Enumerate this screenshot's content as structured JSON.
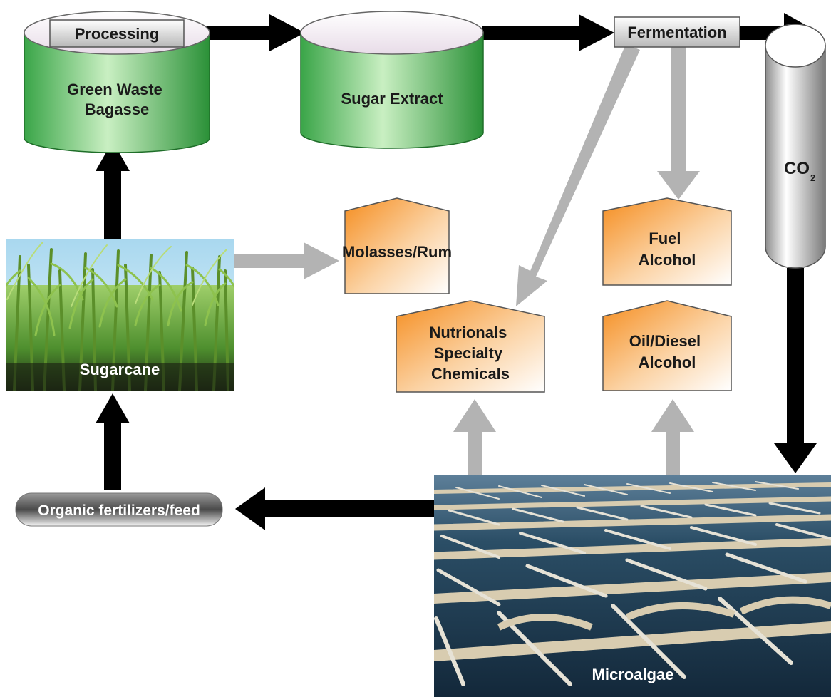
{
  "nodes": {
    "processing": "Processing",
    "green_waste": [
      "Green Waste",
      "Bagasse"
    ],
    "sugar_extract": "Sugar Extract",
    "fermentation": "Fermentation",
    "co2": {
      "main": "CO",
      "sub": "2"
    },
    "sugarcane": "Sugarcane",
    "molasses": "Molasses/Rum",
    "fuel_alcohol": [
      "Fuel",
      "Alcohol"
    ],
    "nutritionals": [
      "Nutrionals",
      "Specialty",
      "Chemicals"
    ],
    "oil_diesel": [
      "Oil/Diesel",
      "Alcohol"
    ],
    "fertilizer": "Organic fertilizers/feed",
    "microalgae": "Microalgae"
  },
  "colors": {
    "cylinder_green_dark": "#2e9a3c",
    "cylinder_green_light": "#d9f3d2",
    "product_orange": "#f4962a",
    "arrow_black": "#000000",
    "arrow_gray": "#b3b3b3",
    "pond_water": "#1d3d52"
  },
  "icons": [
    "sugarcane-photo",
    "microalgae-ponds-photo",
    "co2-tank",
    "green-waste-cylinder",
    "sugar-extract-cylinder"
  ]
}
